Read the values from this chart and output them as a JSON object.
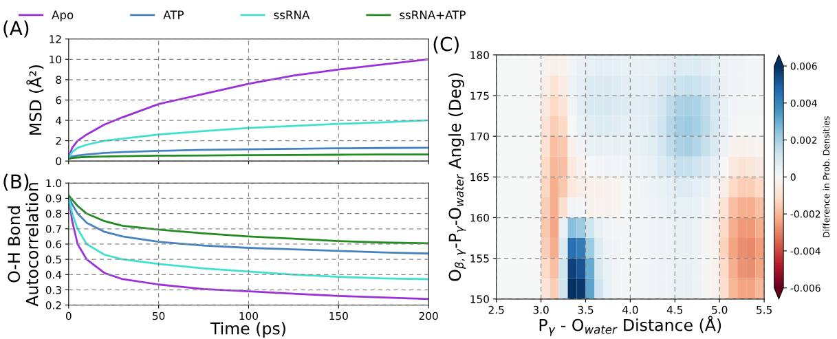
{
  "chart_data": [
    {
      "type": "line",
      "ylabel": "MSD (Å²)",
      "annotations": [
        "(A)"
      ],
      "xlim": [
        0,
        200
      ],
      "xticks": [
        0,
        50,
        100,
        150,
        200
      ],
      "ylim": [
        0,
        12
      ],
      "yticks": [
        0,
        2,
        4,
        6,
        8,
        10,
        12
      ],
      "tick_labels": "y",
      "grid": true,
      "legend": "top",
      "x": [
        0,
        2,
        5,
        10,
        20,
        30,
        50,
        75,
        100,
        125,
        150,
        175,
        200
      ],
      "series": [
        {
          "name": "Apo",
          "color": "#9b30d9",
          "values": [
            0.3,
            1.3,
            2.0,
            2.6,
            3.6,
            4.3,
            5.6,
            6.6,
            7.6,
            8.4,
            9.0,
            9.5,
            10.0
          ]
        },
        {
          "name": "ATP",
          "color": "#4682c0",
          "values": [
            0.3,
            0.45,
            0.55,
            0.65,
            0.8,
            0.88,
            1.0,
            1.1,
            1.15,
            1.2,
            1.25,
            1.28,
            1.3
          ]
        },
        {
          "name": "ssRNA",
          "color": "#40e0d0",
          "values": [
            0.3,
            0.9,
            1.3,
            1.6,
            2.0,
            2.2,
            2.6,
            2.95,
            3.25,
            3.45,
            3.65,
            3.8,
            4.0
          ]
        },
        {
          "name": "ssRNA+ATP",
          "color": "#228b22",
          "values": [
            0.2,
            0.3,
            0.35,
            0.4,
            0.45,
            0.48,
            0.52,
            0.55,
            0.58,
            0.6,
            0.62,
            0.64,
            0.65
          ]
        }
      ]
    },
    {
      "type": "line",
      "xlabel": "Time (ps)",
      "ylabel": "O-H Bond\nAutocorrelation",
      "annotations": [
        "(B)"
      ],
      "xlim": [
        0,
        200
      ],
      "xticks": [
        0,
        50,
        100,
        150,
        200
      ],
      "ylim": [
        0.2,
        1.0
      ],
      "yticks": [
        0.2,
        0.3,
        0.4,
        0.5,
        0.6,
        0.7,
        0.8,
        0.9,
        {
          "value": 1,
          "label": "1.0"
        }
      ],
      "grid": true,
      "x": [
        0,
        2,
        5,
        10,
        20,
        30,
        50,
        75,
        100,
        125,
        150,
        175,
        200
      ],
      "series": [
        {
          "color": "#9b30d9",
          "values": [
            0.91,
            0.75,
            0.6,
            0.5,
            0.41,
            0.37,
            0.335,
            0.305,
            0.29,
            0.275,
            0.26,
            0.25,
            0.24
          ]
        },
        {
          "color": "#4682c0",
          "values": [
            0.91,
            0.86,
            0.8,
            0.74,
            0.68,
            0.65,
            0.615,
            0.59,
            0.575,
            0.565,
            0.555,
            0.545,
            0.538
          ]
        },
        {
          "color": "#40e0d0",
          "values": [
            0.91,
            0.8,
            0.7,
            0.6,
            0.53,
            0.5,
            0.47,
            0.44,
            0.42,
            0.4,
            0.385,
            0.375,
            0.37
          ]
        },
        {
          "color": "#228b22",
          "values": [
            0.92,
            0.89,
            0.85,
            0.8,
            0.75,
            0.72,
            0.695,
            0.67,
            0.65,
            0.635,
            0.62,
            0.61,
            0.605
          ]
        }
      ]
    },
    {
      "type": "heatmap",
      "xlabel": "P$_{γ}$ - O$_{water}$ Distance (Å)",
      "ylabel": "O$_{β,γ}$-P$_{γ}$-O$_{water}$ Angle (Deg)",
      "clabel": "Difference in Prob. Densities",
      "annotations": [
        "(C)"
      ],
      "xlim": [
        2.5,
        5.5
      ],
      "xticks": [
        2.5,
        {
          "value": 3,
          "label": "3.0"
        },
        3.5,
        {
          "value": 4,
          "label": "4.0"
        },
        4.5,
        {
          "value": 5,
          "label": "5.0"
        },
        5.5
      ],
      "ylim": [
        150,
        180
      ],
      "yticks": [
        150,
        155,
        160,
        165,
        170,
        175,
        180
      ],
      "grid": true,
      "clim": [
        -0.006,
        0.006
      ],
      "cticks": [
        0.006,
        0.004,
        0.002,
        0,
        -0.002,
        -0.004,
        -0.006
      ],
      "cells": [
        [
          0,
          0,
          0,
          0,
          0,
          -0.0002,
          -0.0003,
          -0.0002,
          0.0002,
          0.0004,
          0.0005,
          0.0006,
          0.0006,
          0.0005,
          0.0005,
          0.0004,
          0.0004,
          0.0005,
          0.0006,
          0.0007,
          0.0008,
          0.0008,
          0.0008,
          0.0007,
          0.0005,
          0.0003,
          0.0002,
          0.0002,
          0.0001,
          0.0001
        ],
        [
          0,
          0,
          0,
          0,
          0,
          -0.0004,
          -0.0008,
          -0.0005,
          0.0003,
          0.0006,
          0.0008,
          0.0009,
          0.0009,
          0.0008,
          0.0007,
          0.0006,
          0.0006,
          0.0007,
          0.0009,
          0.0011,
          0.0013,
          0.0014,
          0.0013,
          0.0011,
          0.0008,
          0.0004,
          0.0002,
          0.0002,
          0.0001,
          0.0001
        ],
        [
          0,
          0,
          0,
          0,
          0,
          -0.0006,
          -0.0012,
          -0.0008,
          0.0002,
          0.0007,
          0.0009,
          0.001,
          0.001,
          0.0009,
          0.0008,
          0.0007,
          0.0007,
          0.0008,
          0.0011,
          0.0015,
          0.0019,
          0.002,
          0.0019,
          0.0015,
          0.001,
          0.0005,
          0.0002,
          0.0001,
          0.0001,
          0.0001
        ],
        [
          0,
          0,
          0,
          0,
          0,
          -0.0008,
          -0.0015,
          -0.0012,
          0,
          0.0005,
          0.0007,
          0.0008,
          0.0008,
          0.0007,
          0.0006,
          0.0006,
          0.0006,
          0.0008,
          0.0012,
          0.0017,
          0.0021,
          0.0022,
          0.002,
          0.0016,
          0.001,
          0.0005,
          0.0001,
          0,
          0,
          0
        ],
        [
          0,
          0,
          0,
          0,
          0,
          -0.0009,
          -0.0018,
          -0.0016,
          -0.0003,
          0.0002,
          0.0004,
          0.0004,
          0.0004,
          0.0004,
          0.0004,
          0.0004,
          0.0005,
          0.0007,
          0.0011,
          0.0015,
          0.0019,
          0.002,
          0.0018,
          0.0014,
          0.0009,
          0.0003,
          -0.0002,
          -0.0003,
          -0.0002,
          -0.0001
        ],
        [
          0,
          0,
          0,
          0,
          0,
          -0.0012,
          -0.002,
          -0.0018,
          -0.0006,
          -0.0002,
          0,
          0.0001,
          0.0002,
          0.0002,
          0.0002,
          0.0003,
          0.0003,
          0.0005,
          0.0008,
          0.0011,
          0.0014,
          0.0014,
          0.0012,
          0.0009,
          0.0005,
          0,
          -0.0006,
          -0.0008,
          -0.0007,
          -0.0005
        ],
        [
          0,
          0,
          0,
          0,
          0,
          -0.0013,
          -0.0022,
          -0.0016,
          -0.0006,
          -0.0004,
          -0.0003,
          -0.0003,
          -0.0002,
          -0.0001,
          0,
          0.0001,
          0.0002,
          0.0003,
          0.0004,
          0.0006,
          0.0008,
          0.0008,
          0.0006,
          0.0004,
          0.0001,
          -0.0004,
          -0.0012,
          -0.0015,
          -0.0015,
          -0.0012
        ],
        [
          0,
          0,
          0,
          0,
          0,
          -0.0015,
          -0.0022,
          -0.001,
          0.0002,
          0.0001,
          -0.0002,
          -0.0002,
          -0.0002,
          -0.0001,
          0,
          0.0001,
          0.0001,
          0.0002,
          0.0003,
          0.0004,
          0.0005,
          0.0005,
          0.0004,
          0.0002,
          -0.0001,
          -0.0008,
          -0.0018,
          -0.0022,
          -0.0022,
          -0.0018
        ],
        [
          0,
          0,
          0,
          0,
          0,
          -0.0016,
          -0.0023,
          0.0004,
          0.0025,
          0.0022,
          0.0012,
          0.0004,
          0.0002,
          0.0001,
          0.0001,
          0.0001,
          0.0001,
          0.0002,
          0.0003,
          0.0003,
          0.0004,
          0.0004,
          0.0003,
          0.0001,
          -0.0002,
          -0.0012,
          -0.0022,
          -0.0026,
          -0.0026,
          -0.0022
        ],
        [
          0,
          0,
          0,
          0,
          0,
          -0.0015,
          -0.0022,
          0.0008,
          0.0045,
          0.0042,
          0.0022,
          0.0008,
          0.0003,
          0.0002,
          0.0001,
          0.0001,
          0.0001,
          0.0002,
          0.0003,
          0.0003,
          0.0004,
          0.0004,
          0.0003,
          0.0001,
          -0.0002,
          -0.0014,
          -0.0024,
          -0.0028,
          -0.0029,
          -0.0025
        ],
        [
          0,
          0,
          0,
          0,
          0,
          -0.0012,
          -0.0018,
          0.0012,
          0.0056,
          0.0052,
          0.003,
          0.001,
          0.0004,
          0.0002,
          0.0001,
          0.0001,
          0.0001,
          0.0002,
          0.0003,
          0.0003,
          0.0004,
          0.0004,
          0.0003,
          0.0001,
          -0.0002,
          -0.0012,
          -0.0022,
          -0.0027,
          -0.0028,
          -0.0024
        ],
        [
          0,
          0,
          0,
          0,
          0,
          -0.0008,
          -0.0015,
          0.0012,
          0.006,
          0.0058,
          0.0032,
          0.0012,
          0.0005,
          0.0002,
          0.0001,
          0.0001,
          0.0001,
          0.0002,
          0.0003,
          0.0003,
          0.0004,
          0.0004,
          0.0003,
          0.0001,
          -0.0002,
          -0.001,
          -0.002,
          -0.0024,
          -0.0024,
          -0.002
        ]
      ]
    }
  ]
}
